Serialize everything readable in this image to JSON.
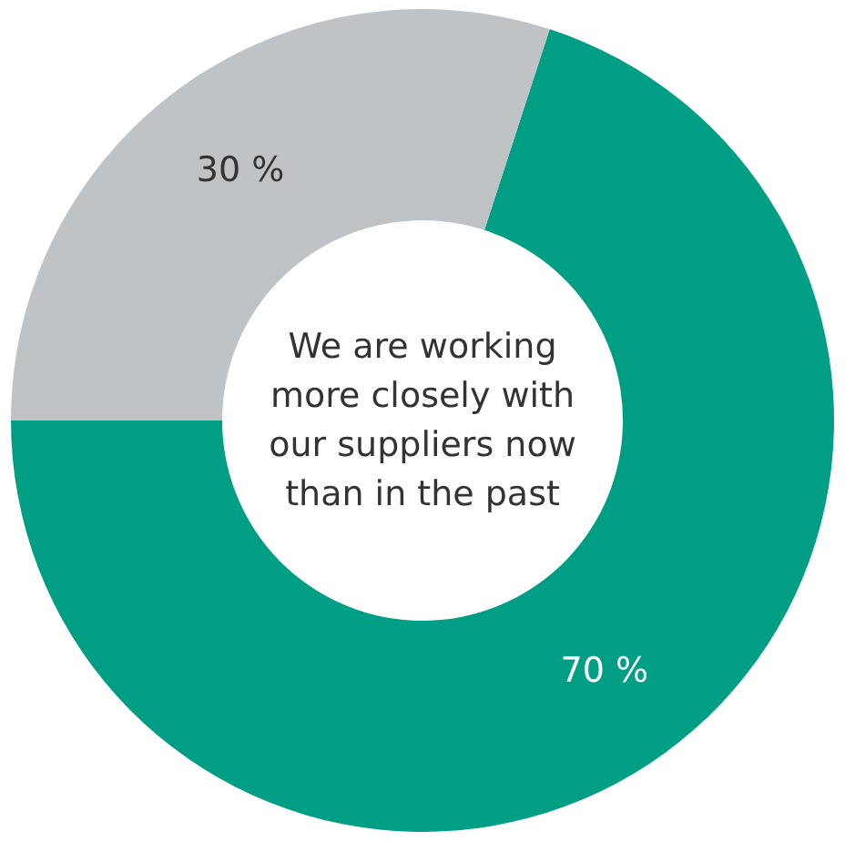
{
  "chart_data": {
    "type": "donut",
    "categories": [
      null,
      null
    ],
    "values": [
      70,
      30
    ],
    "colors": [
      "#009e85",
      "#bfc3c6"
    ],
    "value_labels": [
      "70 %",
      "30 %"
    ],
    "annotations": [
      "We are working more closely with our suppliers now than in the past"
    ]
  }
}
